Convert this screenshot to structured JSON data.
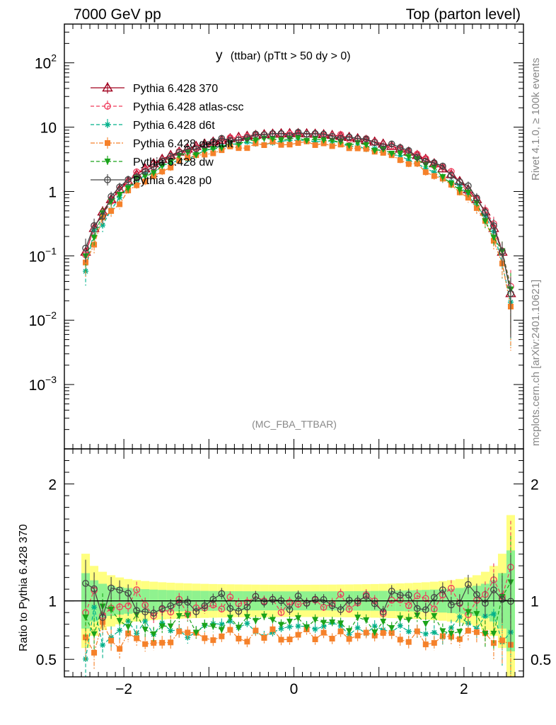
{
  "header": {
    "left": "7000 GeV pp",
    "right": "Top (parton level)"
  },
  "side": {
    "rivet": "Rivet 4.1.0, ≥ 100k events",
    "mcplots": "mcplots.cern.ch [arXiv:2401.10621]"
  },
  "plot_title": {
    "main": "y",
    "sub": "(ttbar) (pTtt > 50 dy > 0)"
  },
  "watermark": "(MC_FBA_TTBAR)",
  "ratio_ylabel": "Ratio to Pythia 6.428 370",
  "chart_data": [
    {
      "type": "line",
      "title": "y (ttbar) (pTtt > 50 dy > 0)",
      "xlabel": "",
      "ylabel": "",
      "yscale": "log",
      "xlim": [
        -2.7,
        2.7
      ],
      "ylim": [
        0.0001,
        400
      ],
      "y_ticks": [
        {
          "value": 0.001,
          "base": "10",
          "exp": "−3"
        },
        {
          "value": 0.01,
          "base": "10",
          "exp": "−2"
        },
        {
          "value": 0.1,
          "base": "10",
          "exp": "−1"
        },
        {
          "value": 1,
          "base": "1",
          "exp": ""
        },
        {
          "value": 10,
          "base": "10",
          "exp": ""
        },
        {
          "value": 100,
          "base": "10",
          "exp": "2"
        }
      ],
      "series": [
        {
          "name": "Pythia 6.428 370",
          "color": "#a0001e",
          "dash": "",
          "marker": "triangle-open",
          "scale": 1.0
        },
        {
          "name": "Pythia 6.428 atlas-csc",
          "color": "#ef3b5b",
          "dash": "5,3",
          "marker": "circle-open",
          "scale": 0.98
        },
        {
          "name": "Pythia 6.428 d6t",
          "color": "#00b08a",
          "dash": "5,3",
          "marker": "star",
          "scale": 0.76
        },
        {
          "name": "Pythia 6.428 default",
          "color": "#f5812a",
          "dash": "6,2,2,2",
          "marker": "square",
          "scale": 0.7
        },
        {
          "name": "Pythia 6.428 dw",
          "color": "#1aa31a",
          "dash": "5,3",
          "marker": "triangle-down",
          "scale": 0.8
        },
        {
          "name": "Pythia 6.428 p0",
          "color": "#444444",
          "dash": "",
          "marker": "circle-open",
          "scale": 0.99
        }
      ],
      "model": {
        "peak": 8.0,
        "edge": 2.65,
        "shape": "peak*(1-(|y|/edge)^2)^2.2",
        "bin_width": 0.1,
        "x_range": [
          -2.45,
          2.55
        ]
      }
    },
    {
      "type": "line",
      "title": "",
      "xlabel": "",
      "ylabel": "Ratio to Pythia 6.428 370",
      "xlim": [
        -2.7,
        2.7
      ],
      "ylim": [
        0.35,
        2.3
      ],
      "x_ticks": [
        -2,
        0,
        2
      ],
      "y_ticks": [
        0.5,
        1,
        2
      ],
      "reference": 1,
      "bands": [
        {
          "name": "stat-inner",
          "color": "#8ff28f"
        },
        {
          "name": "stat-outer",
          "color": "#ffff80"
        }
      ],
      "series_levels": {
        "Pythia 6.428 atlas-csc": 0.98,
        "Pythia 6.428 d6t": 0.76,
        "Pythia 6.428 default": 0.7,
        "Pythia 6.428 dw": 0.8,
        "Pythia 6.428 p0": 0.99
      }
    }
  ]
}
